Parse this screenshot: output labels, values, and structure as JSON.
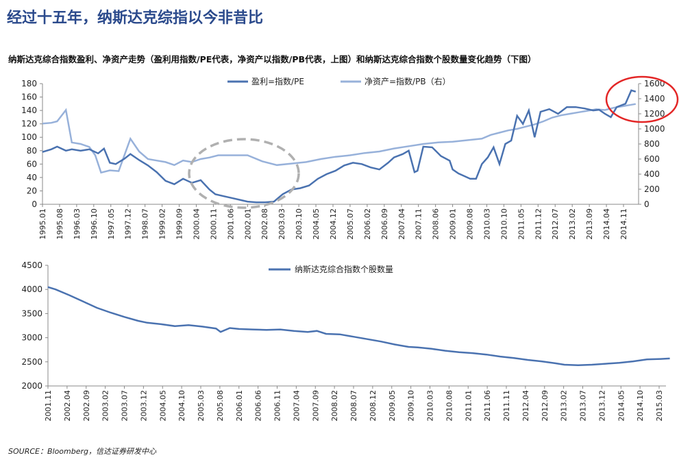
{
  "headline": "经过十五年，纳斯达克综指以今非昔比",
  "subtitle": "纳斯达克综合指数盈利、净资产走势（盈利用指数/PE代表，净资产以指数/PB代表，上图）和纳斯达克综合指数个股数量变化趋势（下图）",
  "source": "SOURCE：Bloomberg，信达证券研发中心",
  "colors": {
    "dark_line": "#4a72b0",
    "light_line": "#97b1da",
    "axis": "#888888",
    "circle_red": "#e32626",
    "circle_gray": "#b0b0b0"
  },
  "chart_data": [
    {
      "type": "line",
      "yticks_left": [
        "180",
        "160",
        "140",
        "120",
        "100",
        "80",
        "60",
        "40",
        "20",
        "0"
      ],
      "yticks_right": [
        "1600",
        "1400",
        "1200",
        "1000",
        "800",
        "600",
        "400",
        "200",
        "0"
      ],
      "xticks": [
        "1995.01",
        "1995.08",
        "1996.03",
        "1996.10",
        "1997.05",
        "1997.12",
        "1998.07",
        "1999.02",
        "1999.09",
        "2000.04",
        "2000.11",
        "2001.06",
        "2002.01",
        "2002.08",
        "2003.03",
        "2003.10",
        "2004.05",
        "2004.12",
        "2005.07",
        "2006.02",
        "2006.09",
        "2007.04",
        "2007.11",
        "2008.06",
        "2009.01",
        "2009.08",
        "2010.03",
        "2010.10",
        "2011.05",
        "2011.12",
        "2012.07",
        "2013.02",
        "2013.09",
        "2014.04",
        "2014.11"
      ],
      "ylim_left": [
        0,
        180
      ],
      "ylim_right": [
        0,
        1600
      ],
      "legend_position": "top",
      "series": [
        {
          "name": "盈利=指数/PE",
          "axis": "left",
          "x": [
            1995.0,
            1995.3,
            1995.5,
            1995.8,
            1996.0,
            1996.3,
            1996.6,
            1996.9,
            1997.1,
            1997.3,
            1997.5,
            1997.8,
            1998.0,
            1998.3,
            1998.6,
            1998.9,
            1999.2,
            1999.5,
            1999.8,
            2000.1,
            2000.4,
            2000.7,
            2000.9,
            2001.2,
            2001.5,
            2001.8,
            2002.0,
            2002.3,
            2002.6,
            2002.9,
            2003.2,
            2003.5,
            2003.8,
            2004.1,
            2004.4,
            2004.7,
            2005.0,
            2005.3,
            2005.6,
            2005.9,
            2006.2,
            2006.5,
            2006.8,
            2007.0,
            2007.3,
            2007.5,
            2007.7,
            2007.8,
            2008.0,
            2008.3,
            2008.6,
            2008.9,
            2009.0,
            2009.2,
            2009.4,
            2009.6,
            2009.8,
            2010.0,
            2010.2,
            2010.4,
            2010.6,
            2010.8,
            2011.0,
            2011.2,
            2011.4,
            2011.6,
            2011.8,
            2012.0,
            2012.3,
            2012.6,
            2012.9,
            2013.2,
            2013.5,
            2013.8,
            2014.0,
            2014.2,
            2014.4,
            2014.6,
            2014.9,
            2015.1,
            2015.25
          ],
          "values": [
            78,
            82,
            86,
            80,
            82,
            80,
            82,
            76,
            83,
            62,
            60,
            68,
            75,
            66,
            58,
            48,
            35,
            30,
            38,
            32,
            36,
            22,
            15,
            12,
            9,
            6,
            4,
            3,
            3,
            4,
            15,
            22,
            24,
            28,
            38,
            45,
            50,
            58,
            62,
            60,
            55,
            52,
            62,
            70,
            75,
            80,
            48,
            50,
            86,
            85,
            72,
            65,
            52,
            46,
            42,
            38,
            38,
            60,
            70,
            85,
            60,
            90,
            95,
            132,
            120,
            140,
            100,
            138,
            142,
            135,
            145,
            145,
            143,
            140,
            141,
            135,
            130,
            145,
            150,
            170,
            168
          ]
        },
        {
          "name": "净资产=指数/PB（右）",
          "axis": "right",
          "x": [
            1995.0,
            1995.3,
            1995.5,
            1995.8,
            1996.0,
            1996.3,
            1996.6,
            1996.8,
            1997.0,
            1997.3,
            1997.6,
            1998.0,
            1998.3,
            1998.6,
            1998.9,
            1999.2,
            1999.5,
            1999.8,
            2000.1,
            2000.4,
            2000.7,
            2001.0,
            2001.5,
            2002.0,
            2002.5,
            2003.0,
            2003.5,
            2004.0,
            2004.5,
            2005.0,
            2005.5,
            2006.0,
            2006.5,
            2007.0,
            2007.5,
            2008.0,
            2008.5,
            2009.0,
            2009.5,
            2010.0,
            2010.3,
            2010.6,
            2010.9,
            2011.2,
            2011.5,
            2011.8,
            2012.1,
            2012.4,
            2012.7,
            2013.0,
            2013.3,
            2013.6,
            2013.9,
            2014.2,
            2014.5,
            2014.8,
            2015.1,
            2015.25
          ],
          "values": [
            1070,
            1080,
            1100,
            1250,
            820,
            800,
            760,
            650,
            420,
            450,
            440,
            870,
            700,
            600,
            580,
            560,
            520,
            580,
            560,
            600,
            620,
            650,
            650,
            650,
            570,
            520,
            540,
            560,
            600,
            630,
            650,
            680,
            700,
            740,
            770,
            800,
            820,
            830,
            850,
            870,
            920,
            950,
            980,
            1000,
            1030,
            1060,
            1100,
            1150,
            1180,
            1200,
            1220,
            1240,
            1260,
            1250,
            1280,
            1300,
            1320,
            1330
          ]
        }
      ]
    },
    {
      "type": "line",
      "yticks": [
        "4500",
        "4000",
        "3500",
        "3000",
        "2500",
        "2000"
      ],
      "xticks": [
        "2001.11",
        "2002.04",
        "2002.09",
        "2003.02",
        "2003.07",
        "2003.12",
        "2004.05",
        "2004.10",
        "2005.03",
        "2005.08",
        "2006.01",
        "2006.06",
        "2006.11",
        "2007.04",
        "2007.09",
        "2008.02",
        "2008.07",
        "2008.12",
        "2009.05",
        "2009.10",
        "2010.03",
        "2010.08",
        "2011.01",
        "2011.06",
        "2011.11",
        "2012.04",
        "2012.09",
        "2013.02",
        "2013.07",
        "2013.12",
        "2014.05",
        "2014.10",
        "2015.03"
      ],
      "ylim": [
        2000,
        4500
      ],
      "legend_position": "top",
      "series": [
        {
          "name": "纳斯达克综合指数个股数量",
          "x": [
            2001.83,
            2002.0,
            2002.3,
            2002.6,
            2002.9,
            2003.2,
            2003.5,
            2003.8,
            2004.0,
            2004.3,
            2004.6,
            2004.9,
            2005.2,
            2005.5,
            2005.6,
            2005.8,
            2006.0,
            2006.3,
            2006.6,
            2006.9,
            2007.2,
            2007.5,
            2007.7,
            2007.9,
            2008.2,
            2008.5,
            2008.8,
            2009.1,
            2009.4,
            2009.7,
            2009.9,
            2010.2,
            2010.5,
            2010.8,
            2011.1,
            2011.4,
            2011.7,
            2012.0,
            2012.3,
            2012.6,
            2012.9,
            2013.1,
            2013.4,
            2013.7,
            2014.0,
            2014.3,
            2014.6,
            2014.9,
            2015.2,
            2015.4
          ],
          "values": [
            4050,
            4000,
            3880,
            3750,
            3620,
            3520,
            3430,
            3350,
            3310,
            3280,
            3240,
            3260,
            3230,
            3190,
            3120,
            3200,
            3180,
            3170,
            3160,
            3170,
            3140,
            3120,
            3140,
            3080,
            3070,
            3020,
            2970,
            2920,
            2860,
            2810,
            2800,
            2770,
            2730,
            2700,
            2680,
            2650,
            2610,
            2580,
            2540,
            2510,
            2470,
            2440,
            2430,
            2440,
            2460,
            2480,
            2510,
            2550,
            2560,
            2570
          ]
        }
      ]
    }
  ]
}
